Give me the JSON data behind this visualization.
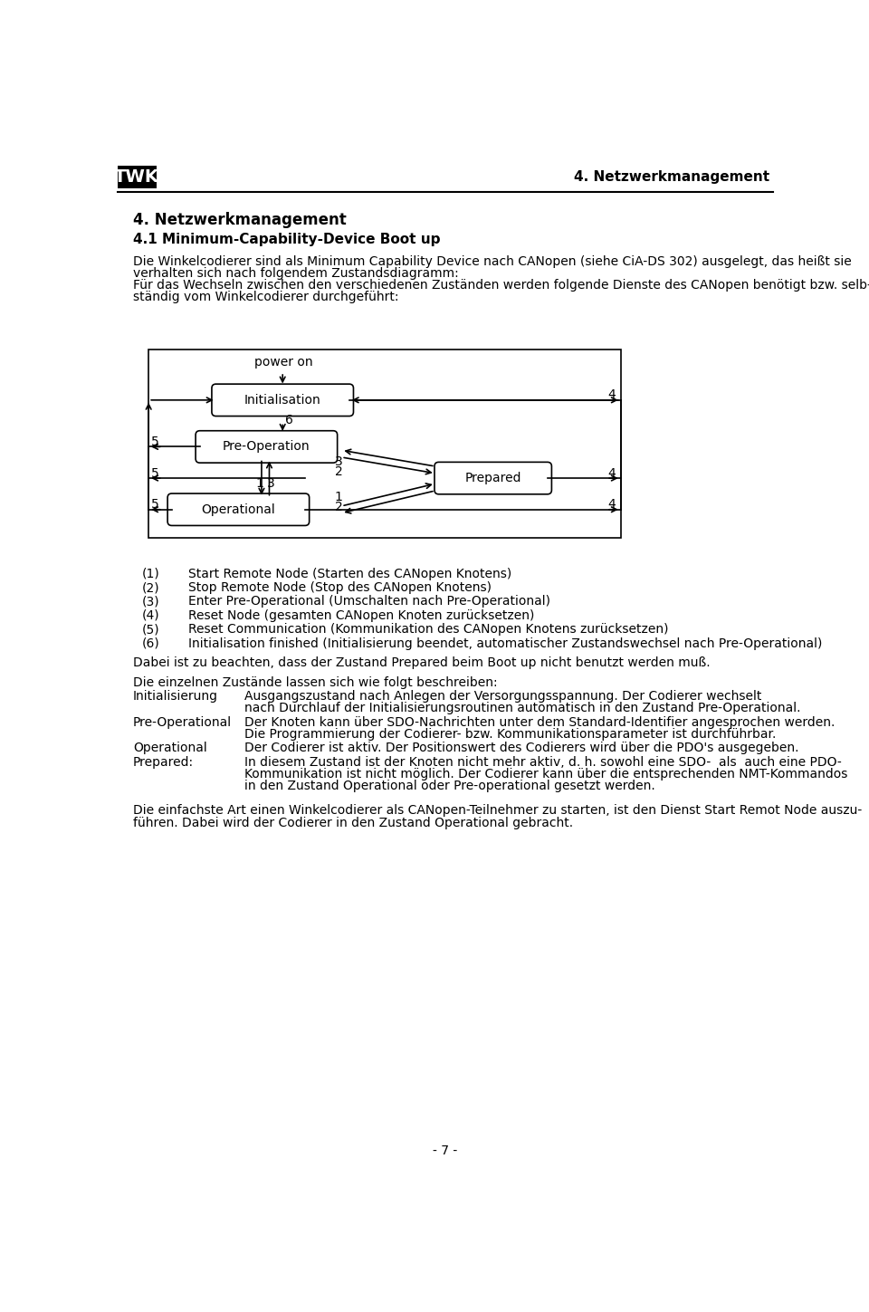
{
  "title_header": "4. Netzwerkmanagement",
  "section_title": "4. Netzwerkmanagement",
  "subsection_title": "4.1 Minimum-Capability-Device Boot up",
  "intro_lines": [
    "Die Winkelcodierer sind als Minimum Capability Device nach CANopen (siehe CiA-DS 302) ausgelegt, das heißt sie",
    "verhalten sich nach folgendem Zustandsdiagramm:",
    "Für das Wechseln zwischen den verschiedenen Zuständen werden folgende Dienste des CANopen benötigt bzw. selb-",
    "ständig vom Winkelcodierer durchgeführt:"
  ],
  "list_items": [
    [
      "(1)",
      "Start Remote Node (Starten des CANopen Knotens)"
    ],
    [
      "(2)",
      "Stop Remote Node (Stop des CANopen Knotens)"
    ],
    [
      "(3)",
      "Enter Pre-Operational (Umschalten nach Pre-Operational)"
    ],
    [
      "(4)",
      "Reset Node (gesamten CANopen Knoten zurücksetzen)"
    ],
    [
      "(5)",
      "Reset Communication (Kommunikation des CANopen Knotens zurücksetzen)"
    ],
    [
      "(6)",
      "Initialisation finished (Initialisierung beendet, automatischer Zustandswechsel nach Pre-Operational)"
    ]
  ],
  "note_text": "Dabei ist zu beachten, dass der Zustand Prepared beim Boot up nicht benutzt werden muß.",
  "states_intro": "Die einzelnen Zustände lassen sich wie folgt beschreiben:",
  "state_descriptions": [
    [
      "Initialisierung",
      [
        "Ausgangszustand nach Anlegen der Versorgungsspannung. Der Codierer wechselt",
        "nach Durchlauf der Initialisierungsroutinen automatisch in den Zustand Pre-Operational."
      ]
    ],
    [
      "Pre-Operational",
      [
        "Der Knoten kann über SDO-Nachrichten unter dem Standard-Identifier angesprochen werden.",
        "Die Programmierung der Codierer- bzw. Kommunikationsparameter ist durchführbar."
      ]
    ],
    [
      "Operational",
      [
        "Der Codierer ist aktiv. Der Positionswert des Codierers wird über die PDO's ausgegeben."
      ]
    ],
    [
      "Prepared:",
      [
        "In diesem Zustand ist der Knoten nicht mehr aktiv, d. h. sowohl eine SDO-  als  auch eine PDO-",
        "Kommunikation ist nicht möglich. Der Codierer kann über die entsprechenden NMT-Kommandos",
        "in den Zustand Operational oder Pre-operational gesetzt werden."
      ]
    ]
  ],
  "footer_lines": [
    "Die einfachste Art einen Winkelcodierer als CANopen-Teilnehmer zu starten, ist den Dienst Start Remot Node auszu-",
    "führen. Dabei wird der Codierer in den Zustand Operational gebracht."
  ],
  "page_number": "- 7 -",
  "bg_color": "#ffffff",
  "text_color": "#000000"
}
